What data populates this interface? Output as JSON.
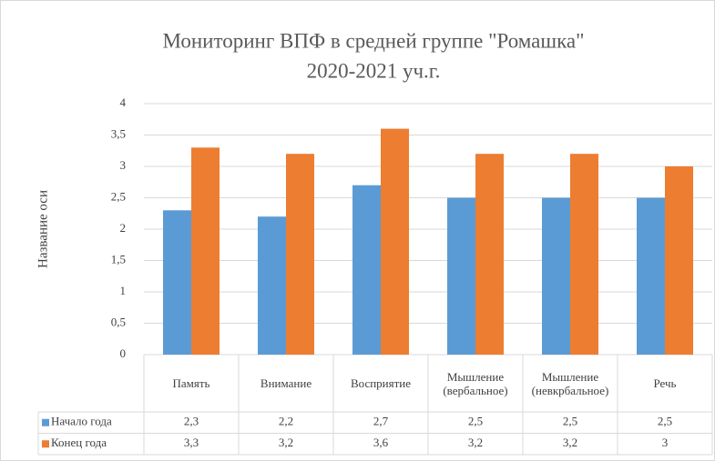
{
  "chart_data": {
    "type": "bar",
    "title": "Мониторинг ВПФ в средней группе \"Ромашка\"",
    "subtitle": "2020-2021 уч.г.",
    "y_label": "Название оси",
    "categories": [
      "Память",
      "Внимание",
      "Восприятие",
      "Мышление (вербальное)",
      "Мышление (невкрбальное)",
      "Речь"
    ],
    "series": [
      {
        "name": "Начало года",
        "color": "#5b9bd5",
        "values": [
          2.3,
          2.2,
          2.7,
          2.5,
          2.5,
          2.5
        ],
        "value_labels": [
          "2,3",
          "2,2",
          "2,7",
          "2,5",
          "2,5",
          "2,5"
        ]
      },
      {
        "name": "Конец года",
        "color": "#ed7d31",
        "values": [
          3.3,
          3.2,
          3.6,
          3.2,
          3.2,
          3
        ],
        "value_labels": [
          "3,3",
          "3,2",
          "3,6",
          "3,2",
          "3,2",
          "3"
        ]
      }
    ],
    "ylim": [
      0,
      4
    ],
    "yticks": [
      0,
      {
        "value": 0.5,
        "label": "0,5"
      },
      1,
      {
        "value": 1.5,
        "label": "1,5"
      },
      2,
      {
        "value": 2.5,
        "label": "2,5"
      },
      3,
      {
        "value": 3.5,
        "label": "3,5"
      },
      4
    ],
    "grid": true,
    "data_table": true
  }
}
